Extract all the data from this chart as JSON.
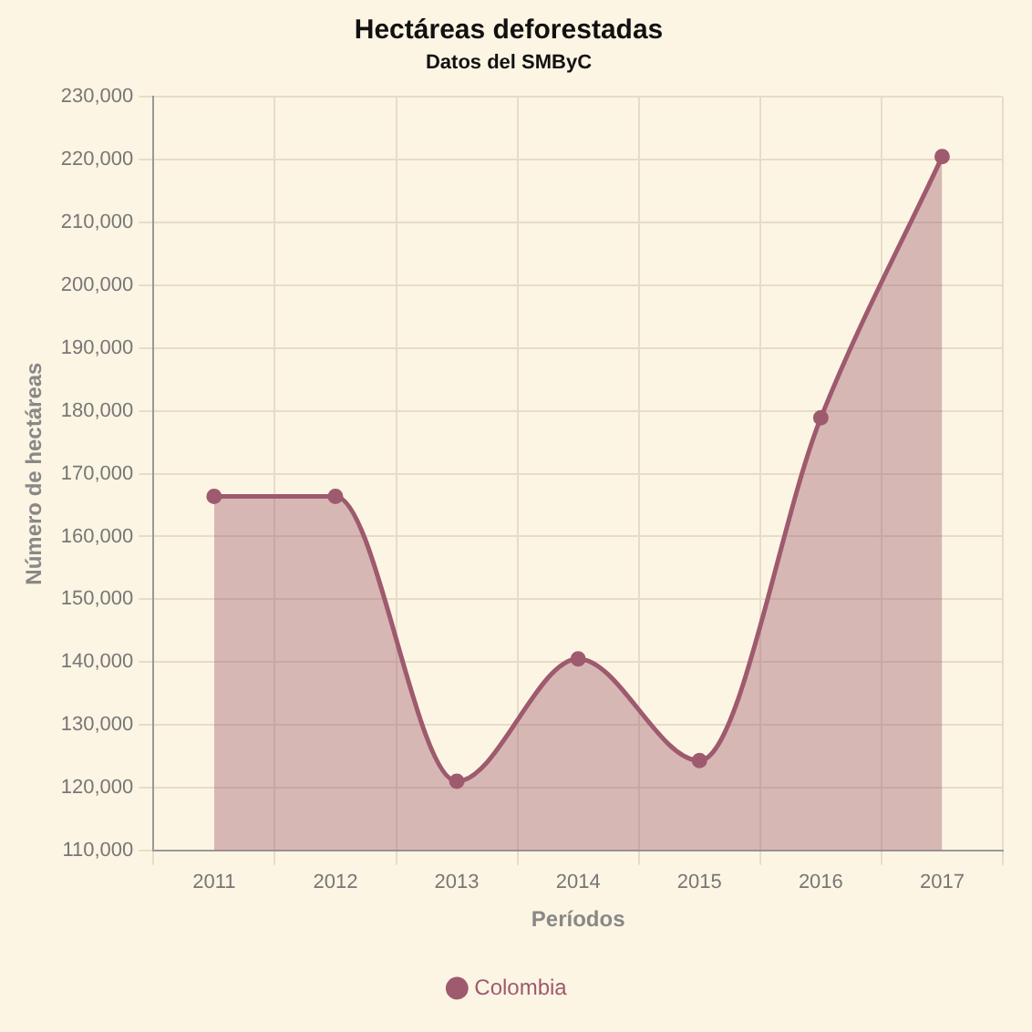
{
  "chart_data": {
    "type": "area",
    "title": "Hectáreas deforestadas",
    "subtitle": "Datos del SMByC",
    "xlabel": "Períodos",
    "ylabel": "Número de hectáreas",
    "categories": [
      "2011",
      "2012",
      "2013",
      "2014",
      "2015",
      "2016",
      "2017"
    ],
    "series": [
      {
        "name": "Colombia",
        "color": "#9e5a6e",
        "values": [
          166400,
          166400,
          121000,
          140500,
          124300,
          178900,
          220500
        ]
      }
    ],
    "ylim": [
      110000,
      230000
    ],
    "yticks": [
      {
        "value": 110000,
        "label": "110,000"
      },
      {
        "value": 120000,
        "label": "120,000"
      },
      {
        "value": 130000,
        "label": "130,000"
      },
      {
        "value": 140000,
        "label": "140,000"
      },
      {
        "value": 150000,
        "label": "150,000"
      },
      {
        "value": 160000,
        "label": "160,000"
      },
      {
        "value": 170000,
        "label": "170,000"
      },
      {
        "value": 180000,
        "label": "180,000"
      },
      {
        "value": 190000,
        "label": "190,000"
      },
      {
        "value": 200000,
        "label": "200,000"
      },
      {
        "value": 210000,
        "label": "210,000"
      },
      {
        "value": 220000,
        "label": "220,000"
      },
      {
        "value": 230000,
        "label": "230,000"
      }
    ],
    "grid": true,
    "legend": "bottom",
    "marker": "circle",
    "line_style": "solid"
  }
}
